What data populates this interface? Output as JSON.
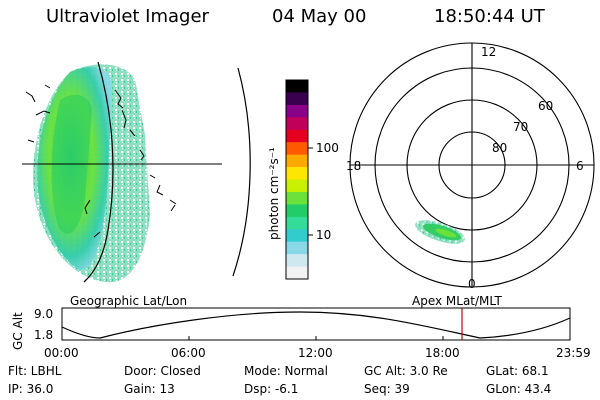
{
  "header": {
    "title": "Ultraviolet Imager",
    "date": "04 May 00",
    "time": "18:50:44 UT"
  },
  "colorbar": {
    "unit_label": "photon cm⁻²s⁻¹",
    "ticks": [
      "100",
      "10"
    ],
    "colors": [
      "#000000",
      "#3a0050",
      "#8a0088",
      "#c0005a",
      "#e60020",
      "#ff5a00",
      "#ffaa00",
      "#ffe600",
      "#c8f000",
      "#6ae23a",
      "#22cc66",
      "#33dd99",
      "#33cccc",
      "#88d8e8",
      "#cfe8f0",
      "#f2f2f2"
    ]
  },
  "geo_panel": {
    "label": "Geographic Lat/Lon"
  },
  "polar_panel": {
    "label": "Apex MLat/MLT",
    "mlt_labels": [
      "12",
      "18",
      "6",
      "0"
    ],
    "mlat_labels": [
      "60",
      "70",
      "80"
    ]
  },
  "altitude_plot": {
    "ylabel": "GC Alt",
    "yticks": [
      "9.0",
      "1.8"
    ],
    "xticks": [
      "00:00",
      "06:00",
      "12:00",
      "18:00",
      "23:59"
    ],
    "marker_time": "18:50",
    "marker_color": "#cc0000"
  },
  "info": {
    "filter": "Flt: LBHL",
    "ip": "IP: 36.0",
    "door": "Door: Closed",
    "gain": "Gain: 13",
    "mode": "Mode: Normal",
    "dsp": "Dsp:   -6.1",
    "gc_alt": "GC Alt: 3.0 Re",
    "seq": "Seq: 39",
    "glat": "GLat: 68.1",
    "glon": "GLon:  43.4"
  }
}
